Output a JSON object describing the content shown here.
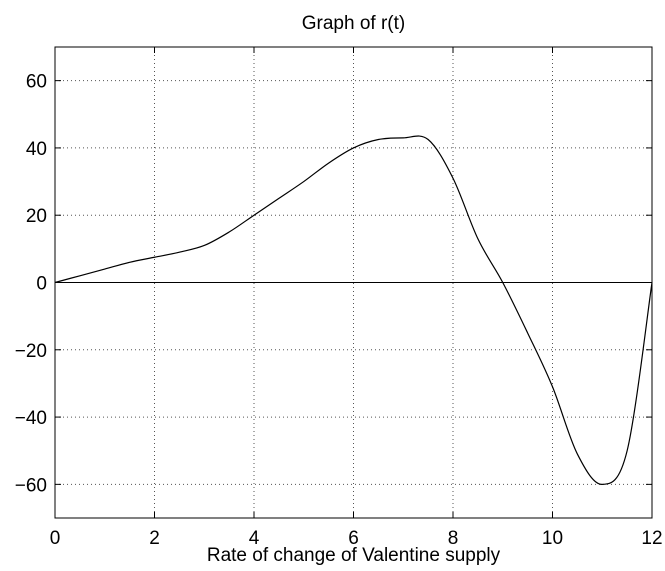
{
  "chart_data": {
    "type": "line",
    "title": "Graph of r(t)",
    "xlabel": "Rate of change of Valentine supply",
    "ylabel": "",
    "xlim": [
      0,
      12
    ],
    "ylim": [
      -70,
      70
    ],
    "x_ticks": [
      "0",
      "2",
      "4",
      "6",
      "8",
      "10",
      "12"
    ],
    "y_ticks": [
      "60",
      "40",
      "20",
      "0",
      "−20",
      "−40",
      "−60"
    ],
    "x_tick_values": [
      0,
      2,
      4,
      6,
      8,
      10,
      12
    ],
    "y_tick_values": [
      60,
      40,
      20,
      0,
      -20,
      -40,
      -60
    ],
    "grid": true,
    "reference_line_y": 0,
    "series": [
      {
        "x": [
          0,
          0.5,
          1,
          1.5,
          2,
          2.5,
          3,
          3.5,
          4,
          4.5,
          5,
          5.5,
          6,
          6.5,
          7,
          7.5,
          8,
          8.5,
          9,
          9.5,
          10,
          10.5,
          11,
          11.5,
          12
        ],
        "y": [
          0,
          2,
          4,
          6,
          7.5,
          9,
          11,
          15,
          20,
          25,
          30,
          35.5,
          40,
          42.5,
          43,
          42.5,
          31,
          13,
          0,
          -15,
          -31,
          -51,
          -60,
          -50,
          0
        ],
        "color": "#000000"
      }
    ]
  }
}
